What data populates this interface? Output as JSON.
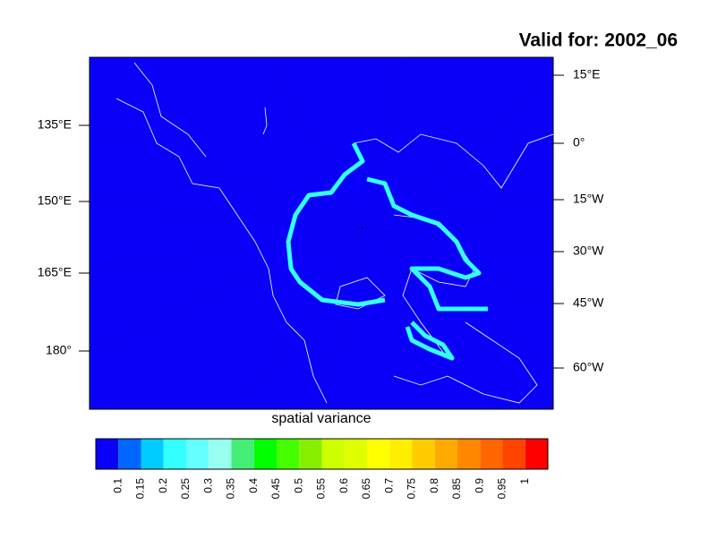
{
  "title": "Valid for: 2002_06",
  "map": {
    "left_labels": [
      "135°E",
      "150°E",
      "165°E",
      "180°"
    ],
    "right_labels": [
      "15°E",
      "0°",
      "15°W",
      "30°W",
      "45°W",
      "60°W"
    ]
  },
  "colorbar": {
    "label": "spatial variance",
    "levels": [
      0.1,
      0.15,
      0.2,
      0.25,
      0.3,
      0.35,
      0.4,
      0.45,
      0.5,
      0.55,
      0.6,
      0.65,
      0.7,
      0.75,
      0.8,
      0.85,
      0.9,
      0.95,
      1
    ],
    "colors": [
      "#0a00f8",
      "#0066ff",
      "#00ccff",
      "#33ffff",
      "#66ffff",
      "#99ffee",
      "#44ee77",
      "#00ff00",
      "#44ff00",
      "#88ee00",
      "#ccff00",
      "#ddff00",
      "#ffff00",
      "#ffee00",
      "#ffcc00",
      "#ffaa00",
      "#ff8800",
      "#ff6600",
      "#ff4400",
      "#ff0000"
    ]
  }
}
